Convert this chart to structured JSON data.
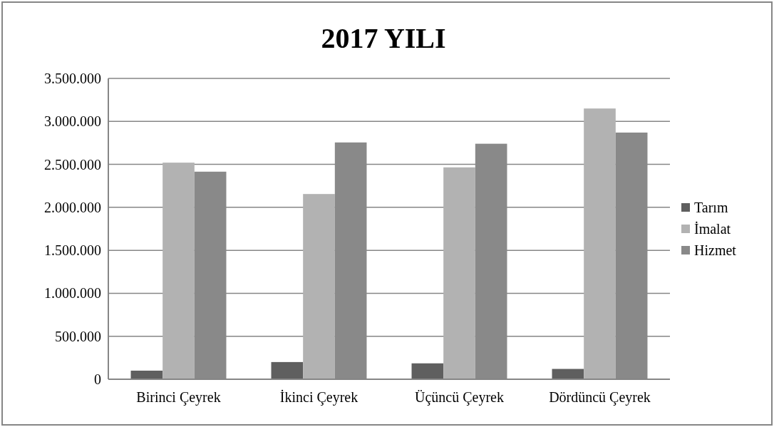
{
  "chart_data": {
    "type": "bar",
    "title": "2017 YILI",
    "categories": [
      "Birinci Çeyrek",
      "İkinci Çeyrek",
      "Üçüncü Çeyrek",
      "Dördüncü Çeyrek"
    ],
    "series": [
      {
        "name": "Tarım",
        "color": "#5f5f5f",
        "values": [
          100000,
          200000,
          185000,
          120000
        ]
      },
      {
        "name": "İmalat",
        "color": "#b2b2b2",
        "values": [
          2520000,
          2155000,
          2465000,
          3150000
        ]
      },
      {
        "name": "Hizmet",
        "color": "#898989",
        "values": [
          2415000,
          2755000,
          2740000,
          2870000
        ]
      }
    ],
    "ylim": [
      0,
      3500000
    ],
    "yticks": [
      {
        "value": 0,
        "label": "0"
      },
      {
        "value": 500000,
        "label": "500.000"
      },
      {
        "value": 1000000,
        "label": "1.000.000"
      },
      {
        "value": 1500000,
        "label": "1.500.000"
      },
      {
        "value": 2000000,
        "label": "2.000.000"
      },
      {
        "value": 2500000,
        "label": "2.500.000"
      },
      {
        "value": 3000000,
        "label": "3.000.000"
      },
      {
        "value": 3500000,
        "label": "3.500.000"
      }
    ],
    "grid": "y",
    "legend": "right"
  }
}
